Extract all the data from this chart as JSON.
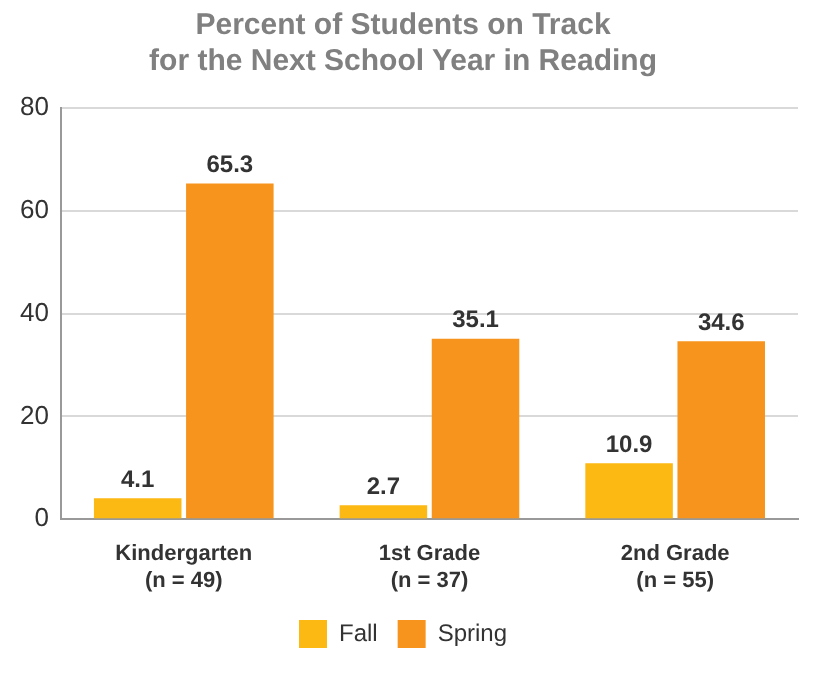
{
  "chart_data": {
    "type": "bar",
    "title": "Percent of Students on Track\nfor the Next School Year in Reading",
    "categories": [
      "Kindergarten\n(n = 49)",
      "1st Grade\n(n = 37)",
      "2nd Grade\n(n = 55)"
    ],
    "series": [
      {
        "name": "Fall",
        "color": "#fdb913",
        "values": [
          4.1,
          2.7,
          10.9
        ]
      },
      {
        "name": "Spring",
        "color": "#f7941d",
        "values": [
          65.3,
          35.1,
          34.6
        ]
      }
    ],
    "ylim": [
      0,
      80
    ],
    "yticks": [
      0,
      20,
      40,
      60,
      80
    ],
    "grid": "y",
    "legend": "bottom",
    "data_labels": true
  }
}
